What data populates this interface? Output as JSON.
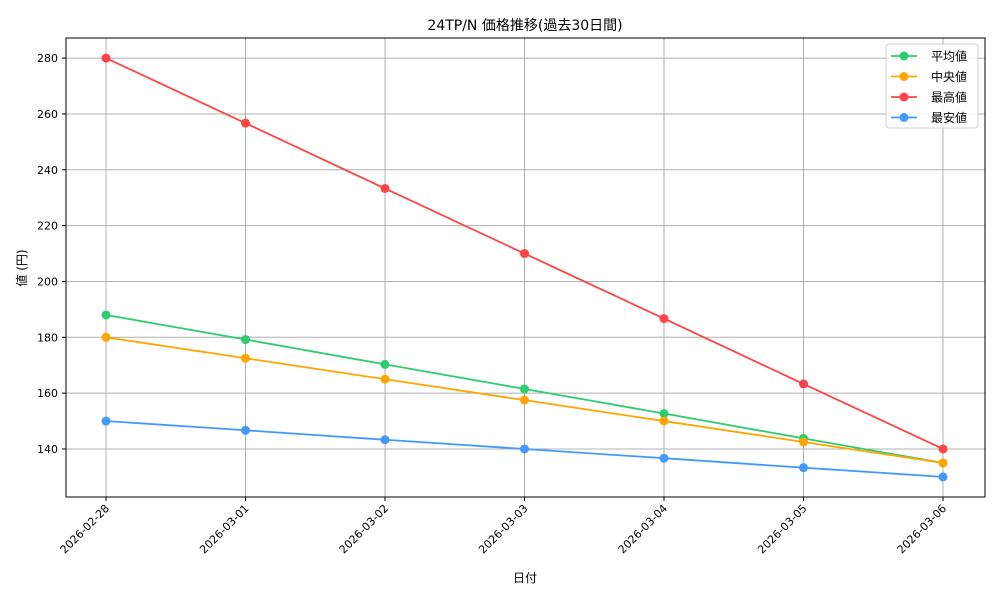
{
  "chart_data": {
    "type": "line",
    "title": "24TP/N 価格推移(過去30日間)",
    "xlabel": "日付",
    "ylabel": "値 (円)",
    "categories": [
      "2026-02-28",
      "2026-03-01",
      "2026-03-02",
      "2026-03-03",
      "2026-03-04",
      "2026-03-05",
      "2026-03-06"
    ],
    "ylim": [
      122.8,
      287.2
    ],
    "yticks": [
      140,
      160,
      180,
      200,
      220,
      240,
      260,
      280
    ],
    "grid": true,
    "legend_position": "top-right",
    "series": [
      {
        "name": "平均値",
        "color": "#2ecc71",
        "values": [
          188,
          179.2,
          170.3,
          161.5,
          152.7,
          143.8,
          135
        ]
      },
      {
        "name": "中央値",
        "color": "#ffa500",
        "values": [
          180,
          172.5,
          165,
          157.5,
          150,
          142.5,
          135
        ]
      },
      {
        "name": "最高値",
        "color": "#ff4444",
        "values": [
          280,
          256.7,
          233.3,
          210,
          186.7,
          163.3,
          140
        ]
      },
      {
        "name": "最安値",
        "color": "#4499ff",
        "values": [
          150,
          146.7,
          143.3,
          140,
          136.7,
          133.3,
          130
        ]
      }
    ]
  }
}
